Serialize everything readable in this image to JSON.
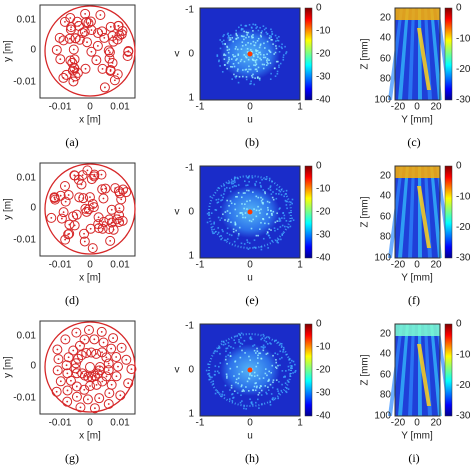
{
  "rows": [
    [
      {
        "label": "(a)",
        "xlabel": "x [m]",
        "ylabel": "y [m]",
        "xticks": [
          "-0.01",
          "0",
          "0.01"
        ],
        "yticks": [
          "0.01",
          "0",
          "-0.01"
        ]
      },
      {
        "label": "(b)",
        "xlabel": "u",
        "ylabel": "v",
        "xticks": [
          "-1",
          "0",
          "1"
        ],
        "yticks": [
          "-1",
          "0",
          "1"
        ],
        "cticks": [
          "0",
          "-10",
          "-20",
          "-30",
          "-40"
        ]
      },
      {
        "label": "(c)",
        "xlabel": "Y [mm]",
        "ylabel": "Z [mm]",
        "xticks": [
          "-20",
          "0",
          "20"
        ],
        "yticks": [
          "20",
          "40",
          "60",
          "80",
          "100"
        ],
        "cticks": [
          "0",
          "-10",
          "-20",
          "-30"
        ]
      }
    ],
    [
      {
        "label": "(d)",
        "xlabel": "x [m]",
        "ylabel": "y [m]",
        "xticks": [
          "-0.01",
          "0",
          "0.01"
        ],
        "yticks": [
          "0.01",
          "0",
          "-0.01"
        ]
      },
      {
        "label": "(e)",
        "xlabel": "u",
        "ylabel": "v",
        "xticks": [
          "-1",
          "0",
          "1"
        ],
        "yticks": [
          "-1",
          "0",
          "1"
        ],
        "cticks": [
          "0",
          "-10",
          "-20",
          "-30",
          "-40"
        ]
      },
      {
        "label": "(f)",
        "xlabel": "Y [mm]",
        "ylabel": "Z [mm]",
        "xticks": [
          "-20",
          "0",
          "20"
        ],
        "yticks": [
          "20",
          "40",
          "60",
          "80",
          "100"
        ],
        "cticks": [
          "0",
          "-10",
          "-20",
          "-30"
        ]
      }
    ],
    [
      {
        "label": "(g)",
        "xlabel": "x [m]",
        "ylabel": "y [m]",
        "xticks": [
          "-0.01",
          "0",
          "0.01"
        ],
        "yticks": [
          "0.01",
          "0",
          "-0.01"
        ]
      },
      {
        "label": "(h)",
        "xlabel": "u",
        "ylabel": "v",
        "xticks": [
          "-1",
          "0",
          "1"
        ],
        "yticks": [
          "-1",
          "0",
          "1"
        ],
        "cticks": [
          "0",
          "-10",
          "-20",
          "-30",
          "-40"
        ]
      },
      {
        "label": "(i)",
        "xlabel": "Y [mm]",
        "ylabel": "Z [mm]",
        "xticks": [
          "-20",
          "0",
          "20"
        ],
        "yticks": [
          "20",
          "40",
          "60",
          "80",
          "100"
        ],
        "cticks": [
          "0",
          "-10",
          "-20",
          "-30"
        ]
      }
    ]
  ]
}
